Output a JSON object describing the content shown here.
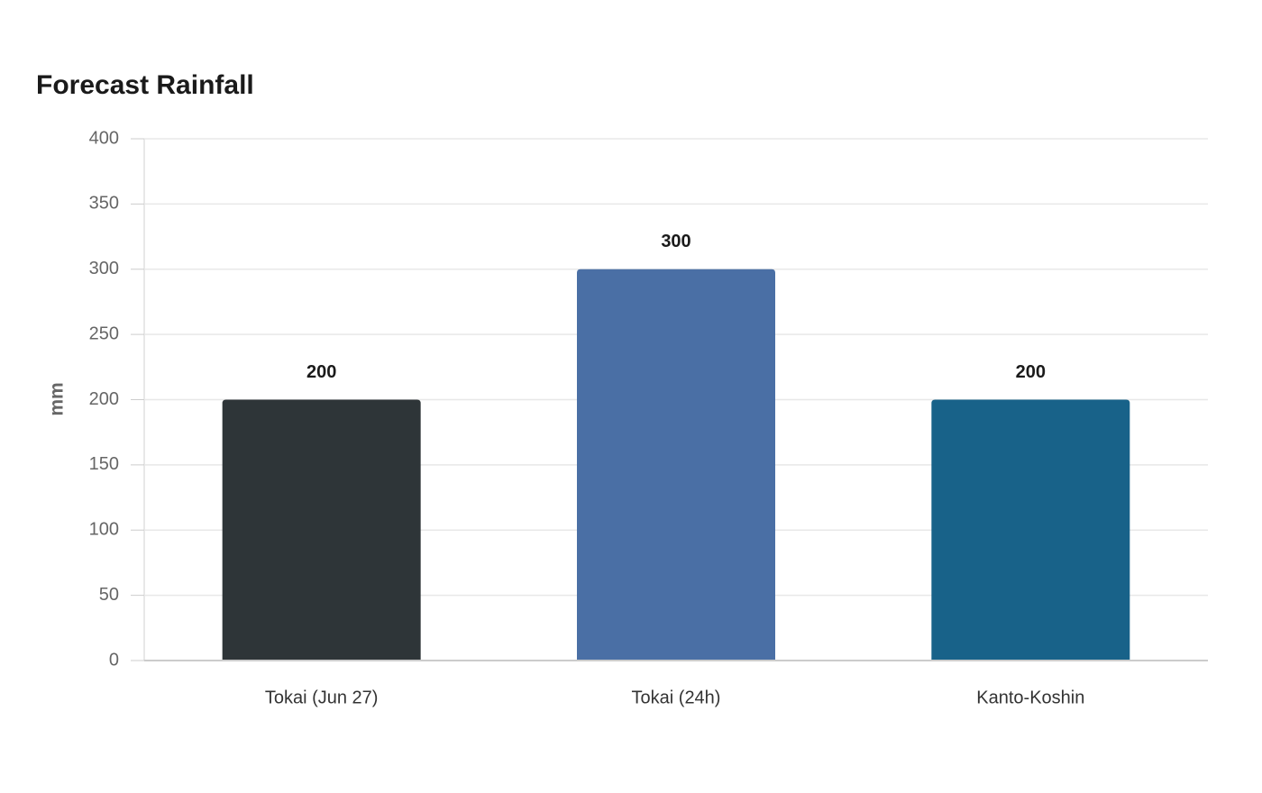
{
  "chart_data": {
    "type": "bar",
    "title": "Forecast Rainfall",
    "y_label": "mm",
    "categories": [
      "Tokai (Jun 27)",
      "Tokai (24h)",
      "Kanto-Koshin"
    ],
    "values": [
      200,
      300,
      200
    ],
    "colors": [
      "#2e3538",
      "#4a6fa5",
      "#186289"
    ],
    "ylim": [
      0,
      400
    ],
    "yticks": [
      0,
      50,
      100,
      150,
      200,
      250,
      300,
      350,
      400
    ],
    "grid": true
  }
}
